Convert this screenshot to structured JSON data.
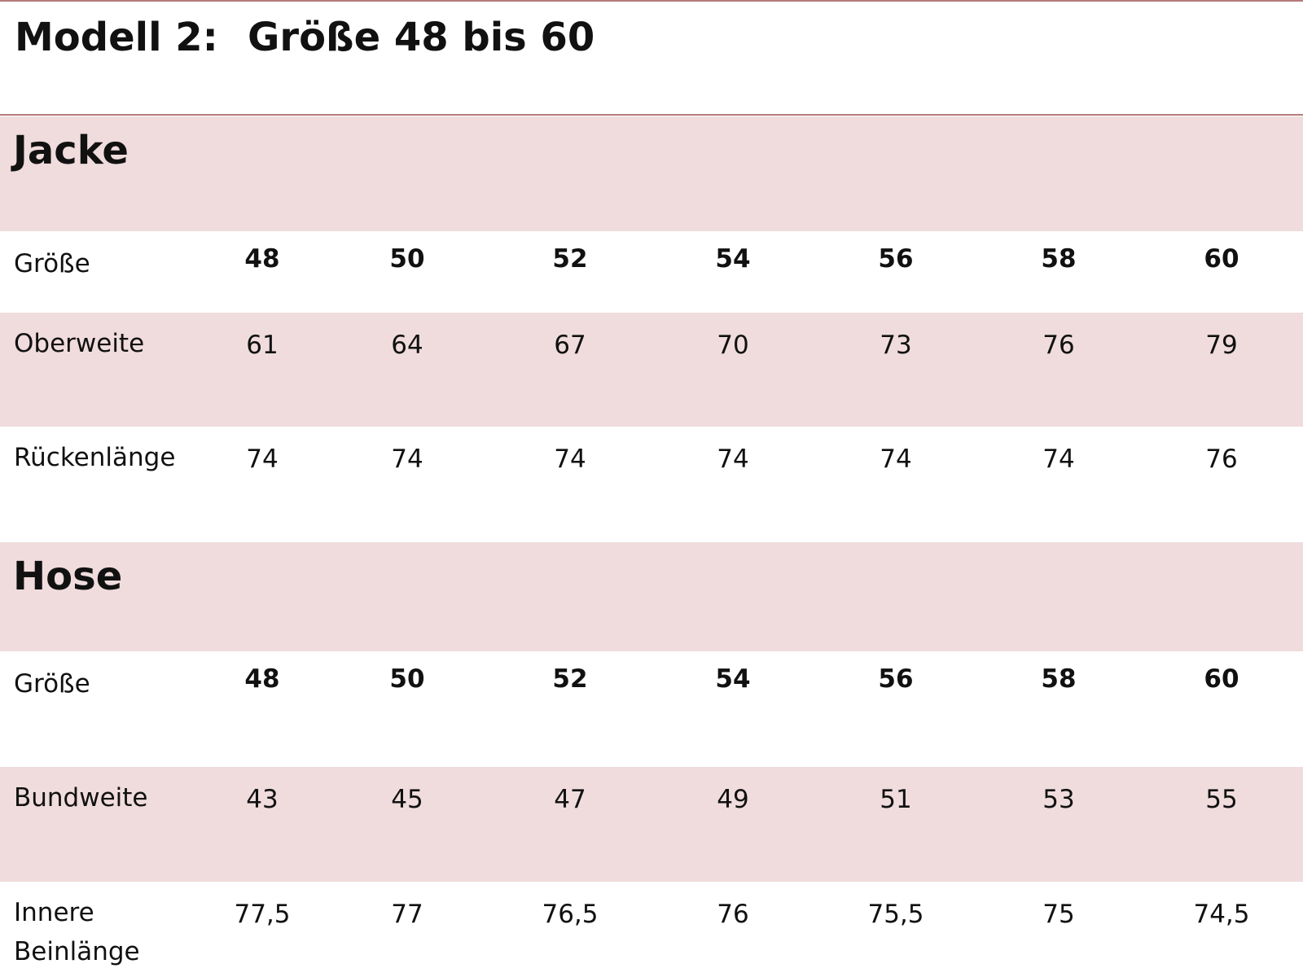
{
  "header": {
    "model": "Modell 2:",
    "title": "Größe 48 bis 60"
  },
  "sections": [
    {
      "title": "Jacke",
      "rows": [
        {
          "label": "Größe",
          "cells": [
            "48",
            "50",
            "52",
            "54",
            "56",
            "58",
            "60"
          ]
        },
        {
          "label": "Oberweite",
          "cells": [
            "61",
            "64",
            "67",
            "70",
            "73",
            "76",
            "79"
          ]
        },
        {
          "label": "Rückenlänge",
          "cells": [
            "74",
            "74",
            "74",
            "74",
            "74",
            "74",
            "76"
          ]
        }
      ]
    },
    {
      "title": "Hose",
      "rows": [
        {
          "label": "Größe",
          "cells": [
            "48",
            "50",
            "52",
            "54",
            "56",
            "58",
            "60"
          ]
        },
        {
          "label": "Bundweite",
          "cells": [
            "43",
            "45",
            "47",
            "49",
            "51",
            "53",
            "55"
          ]
        },
        {
          "label": "Innere Beinlänge",
          "cells": [
            "77,5",
            "77",
            "76,5",
            "76",
            "75,5",
            "75",
            "74,5"
          ]
        }
      ]
    }
  ]
}
